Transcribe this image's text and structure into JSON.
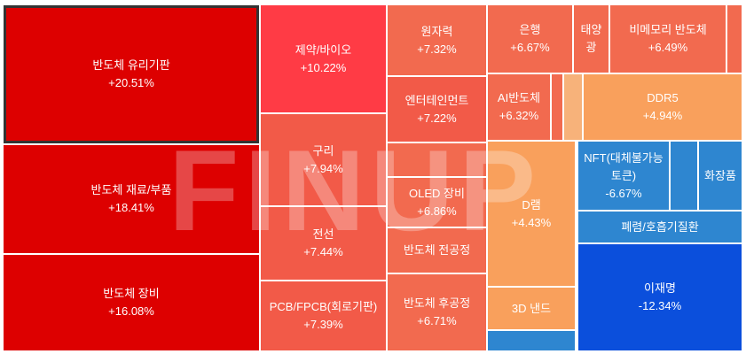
{
  "watermark": "FINUP",
  "tiles": [
    {
      "label": "반도체 유리기판",
      "change": "+20.51%"
    },
    {
      "label": "반도체 재료/부품",
      "change": "+18.41%"
    },
    {
      "label": "반도체 장비",
      "change": "+16.08%"
    },
    {
      "label": "제약/바이오",
      "change": "+10.22%"
    },
    {
      "label": "구리",
      "change": "+7.94%"
    },
    {
      "label": "전선",
      "change": "+7.44%"
    },
    {
      "label": "PCB/FPCB(회로기판)",
      "change": "+7.39%"
    },
    {
      "label": "원자력",
      "change": "+7.32%"
    },
    {
      "label": "엔터테인먼트",
      "change": "+7.22%"
    },
    {
      "label": "OLED 장비",
      "change": "+6.86%"
    },
    {
      "label": "반도체 전공정"
    },
    {
      "label": "반도체 후공정",
      "change": "+6.71%"
    },
    {
      "label": "은행",
      "change": "+6.67%"
    },
    {
      "label": "태양광"
    },
    {
      "label": "비메모리 반도체",
      "change": "+6.49%"
    },
    {
      "label": "AI반도체",
      "change": "+6.32%"
    },
    {
      "label": "DDR5",
      "change": "+4.94%"
    },
    {
      "label": "D램",
      "change": "+4.43%"
    },
    {
      "label": "3D 낸드"
    },
    {
      "label": "NFT(대체불가능토큰)",
      "change": "-6.67%"
    },
    {
      "label": "화장품"
    },
    {
      "label": "폐렴/호흡기질환"
    },
    {
      "label": "이재명",
      "change": "-12.34%"
    }
  ]
}
